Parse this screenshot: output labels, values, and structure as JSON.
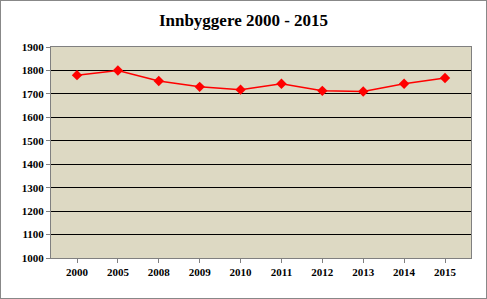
{
  "chart_data": {
    "type": "line",
    "title": "Innbyggere 2000 - 2015",
    "categories": [
      "2000",
      "2005",
      "2008",
      "2009",
      "2010",
      "2011",
      "2012",
      "2013",
      "2014",
      "2015"
    ],
    "values": [
      1780,
      1800,
      1755,
      1730,
      1718,
      1743,
      1713,
      1710,
      1743,
      1768
    ],
    "color": "#ff0000",
    "marker": "diamond",
    "line_style": "solid",
    "ylim": [
      1000,
      1900
    ],
    "yticks": [
      1000,
      1100,
      1200,
      1300,
      1400,
      1500,
      1600,
      1700,
      1800,
      1900
    ],
    "grid": true
  }
}
